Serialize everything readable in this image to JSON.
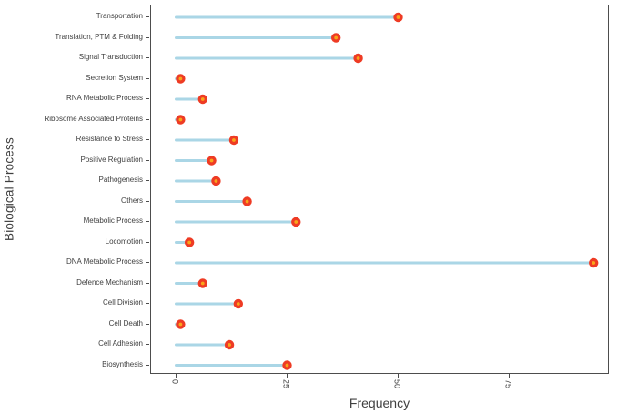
{
  "chart_data": {
    "type": "bar",
    "style": "lollipop",
    "orientation": "horizontal",
    "title": "",
    "xlabel": "Frequency",
    "ylabel": "Biological Process",
    "categories": [
      "Transportation",
      "Translation, PTM & Folding",
      "Signal Transduction",
      "Secretion System",
      "RNA Metabolic Process",
      "Ribosome Associated Proteins",
      "Resistance to Stress",
      "Positive Regulation",
      "Pathogenesis",
      "Others",
      "Metabolic Process",
      "Locomotion",
      "DNA Metabolic Process",
      "Defence Mechanism",
      "Cell Division",
      "Cell Death",
      "Cell Adhesion",
      "Biosynthesis"
    ],
    "values": [
      50,
      36,
      41,
      1,
      6,
      1,
      13,
      8,
      9,
      16,
      27,
      3,
      94,
      6,
      14,
      1,
      12,
      25
    ],
    "xlim": [
      0,
      98
    ],
    "xticks": [
      0,
      25,
      50,
      75
    ],
    "xtick_labels": [
      "0",
      "25",
      "50",
      "75"
    ],
    "xtick_label_rotation_deg": 90,
    "grid": "off",
    "legend": "none",
    "colors": {
      "stem": "#aad6e6",
      "point_outer": "#ee3b24",
      "point_inner": "#f8a51b",
      "axis_text": "#404040",
      "panel_border": "#4d4d4d",
      "background": "#ffffff"
    }
  }
}
